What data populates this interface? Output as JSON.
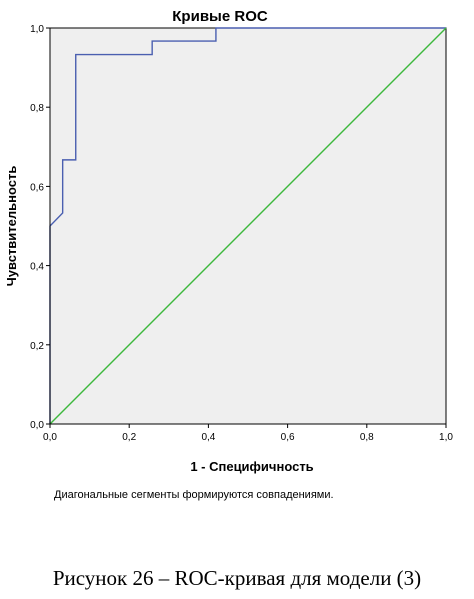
{
  "chart_data": {
    "type": "line",
    "title": "Кривые ROC",
    "xlabel": "1 - Специфичность",
    "ylabel": "Чувствительность",
    "xlim": [
      0,
      1
    ],
    "ylim": [
      0,
      1
    ],
    "xticks": [
      "0,0",
      "0,2",
      "0,4",
      "0,6",
      "0,8",
      "1,0"
    ],
    "yticks": [
      "0,0",
      "0,2",
      "0,4",
      "0,6",
      "0,8",
      "1,0"
    ],
    "grid": false,
    "plot_background": "#efefef",
    "series": [
      {
        "color": "#4a5fb0",
        "x": [
          0,
          0,
          0.032,
          0.032,
          0.065,
          0.065,
          0.258,
          0.258,
          0.419,
          0.419,
          1.0
        ],
        "y": [
          0,
          0.5,
          0.533,
          0.667,
          0.667,
          0.933,
          0.933,
          0.967,
          0.967,
          1.0,
          1.0
        ]
      },
      {
        "color": "#3cb83c",
        "x": [
          0,
          1
        ],
        "y": [
          0,
          1
        ]
      }
    ]
  },
  "footnote": "Диагональные сегменты формируются совпадениями.",
  "caption": "Рисунок 26 – ROC-кривая для модели (3)"
}
